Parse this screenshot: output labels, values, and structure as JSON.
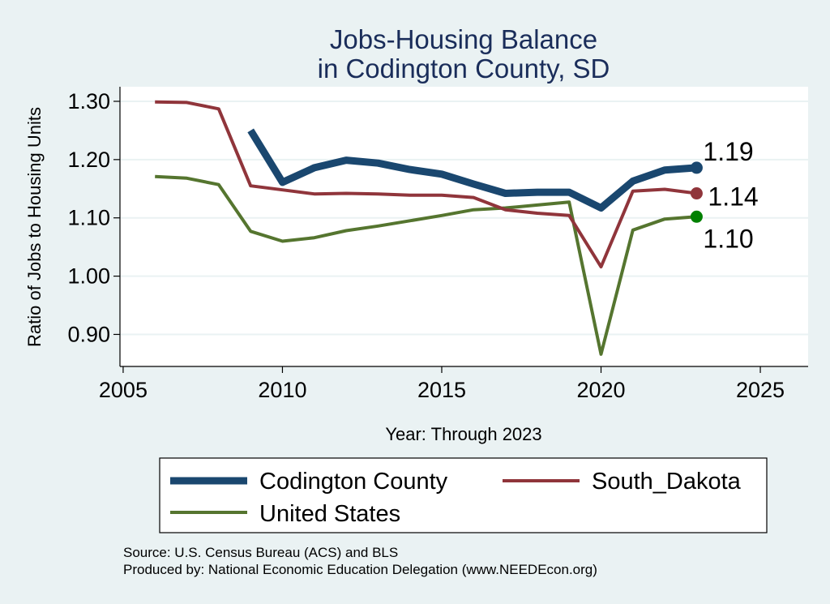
{
  "chart_data": {
    "type": "line",
    "title": [
      "Jobs-Housing Balance",
      "in Codington County, SD"
    ],
    "xlabel": "Year: Through 2023",
    "ylabel": "Ratio of Jobs to Housing Units",
    "xlim": [
      2004.9,
      2026.5
    ],
    "ylim": [
      0.845,
      1.325
    ],
    "xticks": [
      2005,
      2010,
      2015,
      2020,
      2025
    ],
    "yticks": [
      1.3,
      1.2,
      1.1,
      1.0,
      0.9
    ],
    "ytick_labels": [
      "1.30",
      "1.20",
      "1.10",
      "1.00",
      "0.90"
    ],
    "grid": true,
    "legend_position": "bottom",
    "series": [
      {
        "name": "Codington County",
        "color": "#1a476f",
        "x": [
          2009,
          2010,
          2011,
          2012,
          2013,
          2014,
          2015,
          2016,
          2017,
          2018,
          2019,
          2020,
          2021,
          2022,
          2023
        ],
        "values": [
          1.25,
          1.161,
          1.186,
          1.199,
          1.194,
          1.183,
          1.175,
          1.158,
          1.142,
          1.144,
          1.144,
          1.117,
          1.163,
          1.182,
          1.186
        ],
        "end_label": "1.19"
      },
      {
        "name": "South_Dakota",
        "color": "#90353b",
        "x": [
          2006,
          2007,
          2008,
          2009,
          2010,
          2011,
          2012,
          2013,
          2014,
          2015,
          2016,
          2017,
          2018,
          2019,
          2020,
          2021,
          2022,
          2023
        ],
        "values": [
          1.299,
          1.298,
          1.287,
          1.155,
          1.148,
          1.141,
          1.142,
          1.141,
          1.139,
          1.139,
          1.135,
          1.114,
          1.108,
          1.104,
          1.016,
          1.146,
          1.149,
          1.142
        ],
        "end_label": "1.14"
      },
      {
        "name": "United States",
        "color": "#55752f",
        "x": [
          2006,
          2007,
          2008,
          2009,
          2010,
          2011,
          2012,
          2013,
          2014,
          2015,
          2016,
          2017,
          2018,
          2019,
          2020,
          2021,
          2022,
          2023
        ],
        "values": [
          1.171,
          1.168,
          1.157,
          1.077,
          1.06,
          1.066,
          1.078,
          1.086,
          1.095,
          1.104,
          1.114,
          1.117,
          1.122,
          1.127,
          0.866,
          1.079,
          1.098,
          1.102
        ],
        "end_label": "1.10"
      }
    ],
    "notes": [
      "Source: U.S. Census Bureau (ACS) and BLS",
      "Produced by: National Economic Education Delegation (www.NEEDEcon.org)"
    ]
  },
  "colors": {
    "background": "#eaf2f3",
    "plot_background": "#ffffff",
    "grid": "#eaf2f3",
    "end_marker_codington": "#1a476f",
    "end_marker_sd": "#90353b",
    "end_marker_us": "#008000"
  }
}
